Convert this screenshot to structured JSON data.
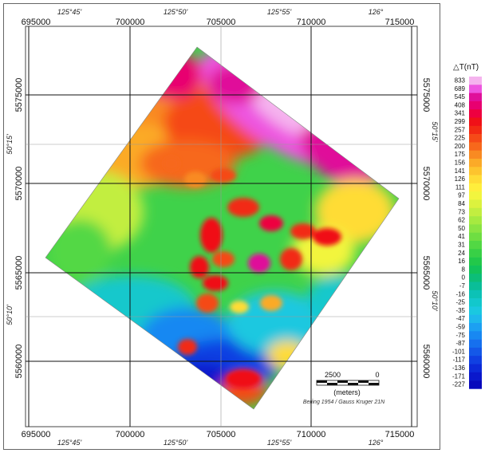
{
  "map": {
    "easting_labels": [
      "695000",
      "700000",
      "705000",
      "710000",
      "715000"
    ],
    "northing_labels": [
      "5575000",
      "5570000",
      "5565000",
      "5560000"
    ],
    "lon_labels": [
      "125°45'",
      "125°50'",
      "125°55'",
      "126°"
    ],
    "lat_labels": [
      "50°15'",
      "50°10'"
    ],
    "scale_bar": {
      "left_label": "2500",
      "right_label": "0",
      "unit_label": "(meters)"
    },
    "projection_note": "Beijing 1954 / Gauss Kruger 21N"
  },
  "legend": {
    "title": "△T(nT)",
    "values": [
      "833",
      "689",
      "545",
      "408",
      "341",
      "299",
      "257",
      "225",
      "200",
      "175",
      "156",
      "141",
      "126",
      "111",
      "97",
      "84",
      "73",
      "62",
      "50",
      "41",
      "31",
      "24",
      "16",
      "8",
      "0",
      "-7",
      "-16",
      "-25",
      "-35",
      "-47",
      "-59",
      "-75",
      "-87",
      "-101",
      "-117",
      "-136",
      "-171",
      "-227"
    ],
    "colors": [
      "#f5b3ee",
      "#ee55e0",
      "#e0109a",
      "#e80070",
      "#ee0040",
      "#f01018",
      "#f22a14",
      "#f54a18",
      "#f7681c",
      "#f98a22",
      "#fbaa28",
      "#fdc42e",
      "#ffdc36",
      "#ffee3c",
      "#f2f53e",
      "#dcf23e",
      "#c2ee40",
      "#a6ea40",
      "#8ae442",
      "#6ede42",
      "#52d844",
      "#38d046",
      "#22c84a",
      "#12c25a",
      "#0cbe78",
      "#0abe98",
      "#0cc2b6",
      "#12c8cc",
      "#1ac8e0",
      "#1eb8ec",
      "#1ca0f2",
      "#1888f2",
      "#1670ee",
      "#1458e8",
      "#1040e2",
      "#0c2ad8",
      "#0a18cc",
      "#0808bc"
    ]
  }
}
